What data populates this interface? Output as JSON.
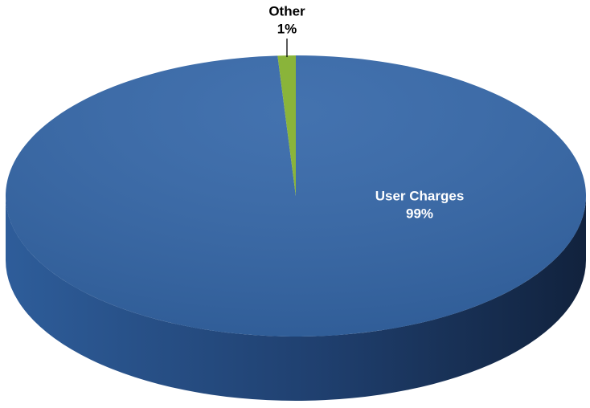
{
  "chart_data": {
    "type": "pie",
    "categories": [
      "User Charges",
      "Other"
    ],
    "values": [
      99,
      1
    ],
    "value_labels": [
      "99%",
      "1%"
    ],
    "colors": [
      "#3366a8",
      "#8ab43a"
    ]
  }
}
